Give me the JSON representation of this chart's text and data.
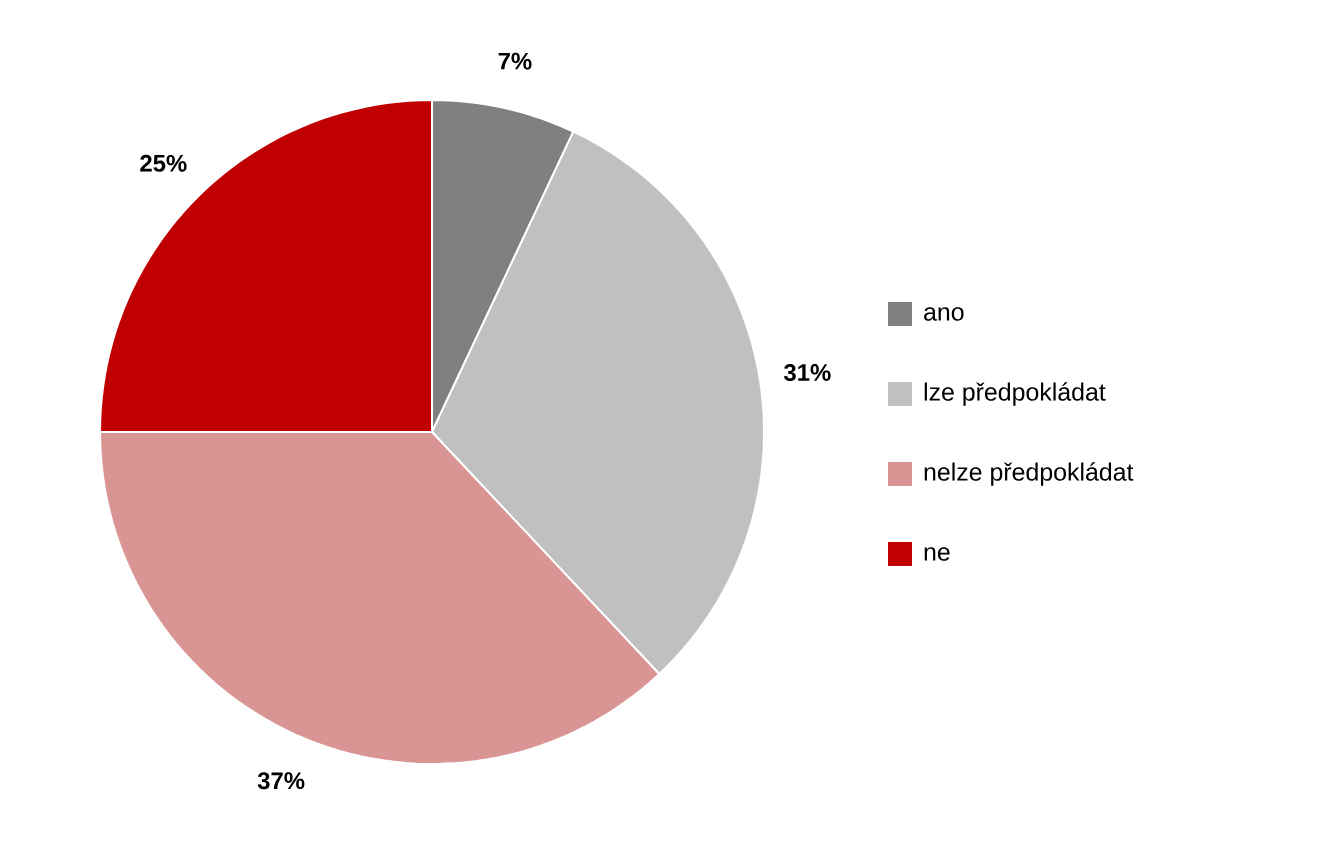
{
  "chart_data": {
    "type": "pie",
    "categories": [
      "ano",
      "lze předpokládat",
      "nelze předpokládat",
      "ne"
    ],
    "values": [
      7,
      31,
      37,
      25
    ],
    "colors": [
      "#808080",
      "#c0c0c0",
      "#d99594",
      "#c00000"
    ],
    "value_labels": [
      "7%",
      "31%",
      "37%",
      "25%"
    ],
    "legend": "right"
  }
}
